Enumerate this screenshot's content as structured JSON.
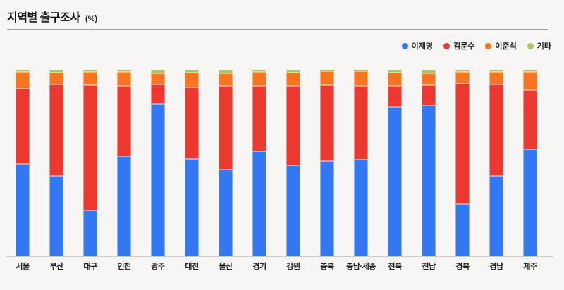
{
  "title": {
    "text": "지역별 출구조사",
    "unit": "(%)"
  },
  "colors": {
    "background": "#f7f6f4",
    "divider": "#a0a0a0",
    "axis_line": "#cbcbcb",
    "title_text": "#111111",
    "label_text": "#222222"
  },
  "chart_data": {
    "type": "bar",
    "subtype": "stacked-100-percent",
    "title": "지역별 출구조사",
    "unit": "%",
    "grid": false,
    "legend_position": "top-right",
    "ylim": [
      0,
      100
    ],
    "stack_order_bottom_to_top": [
      "이재명",
      "김문수",
      "이준석",
      "기타"
    ],
    "categories": [
      "서울",
      "부산",
      "대구",
      "인천",
      "광주",
      "대전",
      "울산",
      "경기",
      "강원",
      "충북",
      "충남·세종",
      "전북",
      "전남",
      "경북",
      "경남",
      "제주"
    ],
    "series": [
      {
        "name": "이재명",
        "color": "#3377f2",
        "values": [
          49.3,
          43.0,
          24.5,
          53.7,
          81.6,
          52.2,
          46.5,
          56.2,
          48.8,
          51.0,
          51.8,
          80.1,
          80.6,
          28.0,
          43.1,
          57.3
        ]
      },
      {
        "name": "김문수",
        "color": "#ec382e",
        "values": [
          40.4,
          48.9,
          67.4,
          37.7,
          10.4,
          38.4,
          44.8,
          35.1,
          42.6,
          40.7,
          39.4,
          11.2,
          11.3,
          64.3,
          48.9,
          31.7
        ]
      },
      {
        "name": "이준석",
        "color": "#f8741f",
        "values": [
          9.3,
          6.4,
          7.0,
          7.4,
          6.2,
          7.8,
          6.8,
          7.6,
          7.1,
          7.5,
          7.9,
          7.3,
          6.3,
          6.4,
          6.9,
          9.9
        ]
      },
      {
        "name": "기타",
        "color": "#a7c85a",
        "values": [
          1.0,
          1.7,
          1.1,
          1.2,
          1.8,
          1.6,
          1.9,
          1.1,
          1.5,
          0.8,
          0.9,
          1.4,
          1.8,
          1.3,
          1.1,
          1.1
        ]
      }
    ]
  }
}
